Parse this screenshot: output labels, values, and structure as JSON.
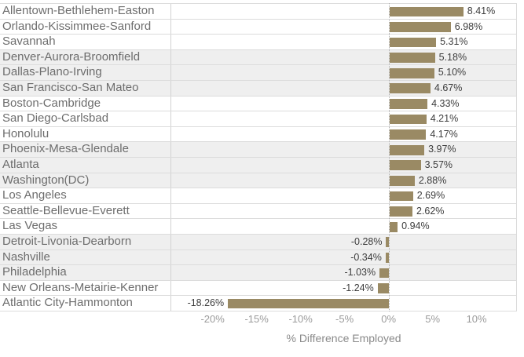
{
  "chart_data": {
    "type": "bar",
    "orientation": "horizontal",
    "title": "",
    "xlabel": "% Difference Employed",
    "ylabel": "",
    "categories": [
      "Allentown-Bethlehem-Easton",
      "Orlando-Kissimmee-Sanford",
      "Savannah",
      "Denver-Aurora-Broomfield",
      "Dallas-Plano-Irving",
      "San Francisco-San Mateo",
      "Boston-Cambridge",
      "San Diego-Carlsbad",
      "Honolulu",
      "Phoenix-Mesa-Glendale",
      "Atlanta",
      "Washington(DC)",
      "Los Angeles",
      "Seattle-Bellevue-Everett",
      "Las Vegas",
      "Detroit-Livonia-Dearborn",
      "Nashville",
      "Philadelphia",
      "New Orleans-Metairie-Kenner",
      "Atlantic City-Hammonton"
    ],
    "values": [
      8.41,
      6.98,
      5.31,
      5.18,
      5.1,
      4.67,
      4.33,
      4.21,
      4.17,
      3.97,
      3.57,
      2.88,
      2.69,
      2.62,
      0.94,
      -0.28,
      -0.34,
      -1.03,
      -1.24,
      -18.26
    ],
    "value_labels": [
      "8.41%",
      "6.98%",
      "5.31%",
      "5.18%",
      "5.10%",
      "4.67%",
      "4.33%",
      "4.21%",
      "4.17%",
      "3.97%",
      "3.57%",
      "2.88%",
      "2.69%",
      "2.62%",
      "0.94%",
      "-0.28%",
      "-0.34%",
      "-1.03%",
      "-1.24%",
      "-18.26%"
    ],
    "x_ticks": [
      -20,
      -15,
      -10,
      -5,
      0,
      5,
      10
    ],
    "x_tick_labels": [
      "-20%",
      "-15%",
      "-10%",
      "-5%",
      "0%",
      "5%",
      "10%"
    ],
    "xlim": [
      -24.7,
      14.5
    ],
    "zero_line_style": "dotted",
    "legend_position": "none",
    "grid": false,
    "row_stripes": true,
    "striped_row_indices": [
      3,
      4,
      5,
      9,
      10,
      11,
      15,
      16,
      17
    ],
    "bar_color": "#9a8a64",
    "stripe_color": "#efefef"
  }
}
